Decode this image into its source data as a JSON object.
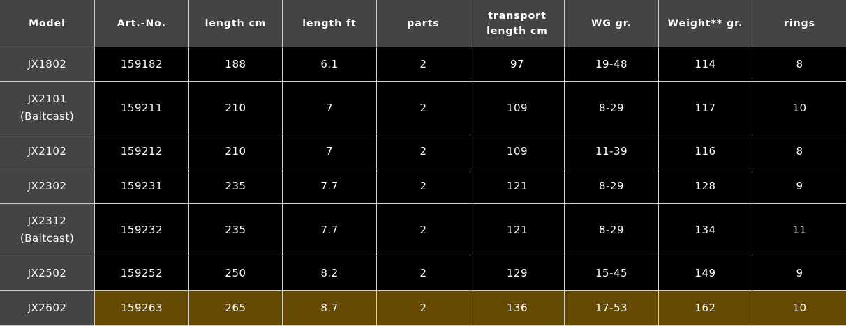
{
  "headers": [
    "Model",
    "Art.-No.",
    "length cm",
    "length ft",
    "parts",
    "transport length cm",
    "WG gr.",
    "Weight** gr.",
    "rings"
  ],
  "rows": [
    {
      "model": "JX1802",
      "sub": "",
      "art": "159182",
      "len_cm": "188",
      "len_ft": "6.1",
      "parts": "2",
      "transport": "97",
      "wg": "19-48",
      "weight": "114",
      "rings": "8"
    },
    {
      "model": "JX2101",
      "sub": "(Baitcast)",
      "art": "159211",
      "len_cm": "210",
      "len_ft": "7",
      "parts": "2",
      "transport": "109",
      "wg": "8-29",
      "weight": "117",
      "rings": "10"
    },
    {
      "model": "JX2102",
      "sub": "",
      "art": "159212",
      "len_cm": "210",
      "len_ft": "7",
      "parts": "2",
      "transport": "109",
      "wg": "11-39",
      "weight": "116",
      "rings": "8"
    },
    {
      "model": "JX2302",
      "sub": "",
      "art": "159231",
      "len_cm": "235",
      "len_ft": "7.7",
      "parts": "2",
      "transport": "121",
      "wg": "8-29",
      "weight": "128",
      "rings": "9"
    },
    {
      "model": "JX2312",
      "sub": "(Baitcast)",
      "art": "159232",
      "len_cm": "235",
      "len_ft": "7.7",
      "parts": "2",
      "transport": "121",
      "wg": "8-29",
      "weight": "134",
      "rings": "11"
    },
    {
      "model": "JX2502",
      "sub": "",
      "art": "159252",
      "len_cm": "250",
      "len_ft": "8.2",
      "parts": "2",
      "transport": "129",
      "wg": "15-45",
      "weight": "149",
      "rings": "9"
    },
    {
      "model": "JX2602",
      "sub": "",
      "art": "159263",
      "len_cm": "265",
      "len_ft": "8.7",
      "parts": "2",
      "transport": "136",
      "wg": "17-53",
      "weight": "162",
      "rings": "10",
      "highlighted": true
    }
  ],
  "colors": {
    "header_bg": "#444444",
    "cell_bg": "#000000",
    "highlight_bg": "#654900",
    "border": "#cfcfcf"
  }
}
